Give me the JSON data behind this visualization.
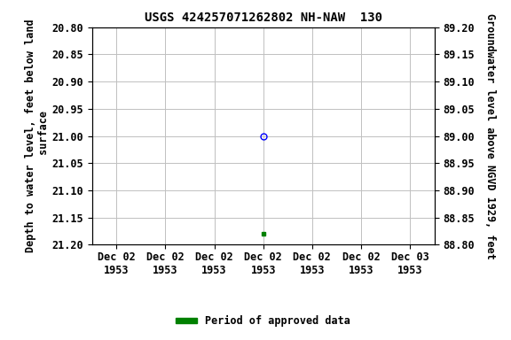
{
  "title": "USGS 424257071262802 NH-NAW  130",
  "left_ylabel": "Depth to water level, feet below land\n surface",
  "right_ylabel": "Groundwater level above NGVD 1929, feet",
  "ylim_left": [
    20.8,
    21.2
  ],
  "ylim_right": [
    88.8,
    89.2
  ],
  "y_ticks_left": [
    20.8,
    20.85,
    20.9,
    20.95,
    21.0,
    21.05,
    21.1,
    21.15,
    21.2
  ],
  "y_ticks_right": [
    88.8,
    88.85,
    88.9,
    88.95,
    89.0,
    89.05,
    89.1,
    89.15,
    89.2
  ],
  "x_tick_labels": [
    "Dec 02\n1953",
    "Dec 02\n1953",
    "Dec 02\n1953",
    "Dec 02\n1953",
    "Dec 02\n1953",
    "Dec 02\n1953",
    "Dec 03\n1953"
  ],
  "x_tick_positions": [
    0,
    1,
    2,
    3,
    4,
    5,
    6
  ],
  "xlim": [
    -0.5,
    6.5
  ],
  "blue_point_x": 3,
  "blue_point_y": 21.0,
  "green_point_x": 3,
  "green_point_y": 21.18,
  "blue_color": "#0000ff",
  "green_color": "#008000",
  "legend_label": "Period of approved data",
  "background_color": "#ffffff",
  "grid_color": "#c0c0c0",
  "title_fontsize": 10,
  "axis_fontsize": 8.5,
  "tick_fontsize": 8.5
}
